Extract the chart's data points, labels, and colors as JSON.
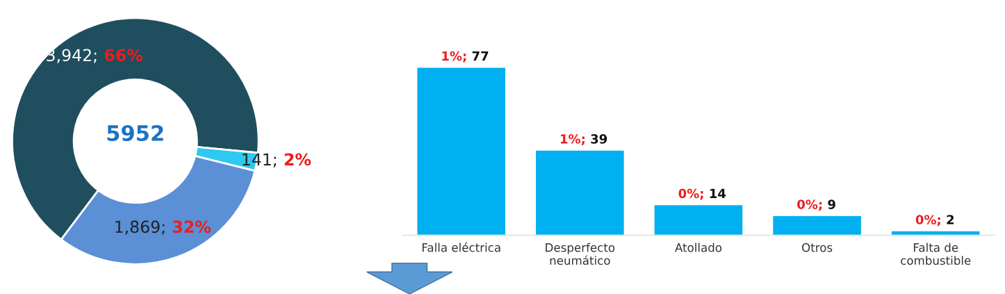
{
  "chart_data": [
    {
      "type": "donut",
      "categories": [
        null,
        null,
        null
      ],
      "values": [
        3942,
        141,
        1869
      ],
      "colors": [
        "#1f4e5f",
        "#2ec8f0",
        "#5b8fd6"
      ],
      "value_labels": [
        "3,942; 66%",
        "141; 2%",
        "1,869; 32%"
      ],
      "annotations": [
        "5952"
      ]
    },
    {
      "type": "bar",
      "categories": [
        "Falla eléctrica",
        "Desperfecto\nneumático",
        "Atollado",
        "Otros",
        "Falta de\ncombustible"
      ],
      "values": [
        77,
        39,
        14,
        9,
        2
      ],
      "color": "#00b0f0",
      "value_labels": [
        "1%; 77",
        "1%; 39",
        "0%; 14",
        "0%; 9",
        "0%; 2"
      ]
    }
  ]
}
